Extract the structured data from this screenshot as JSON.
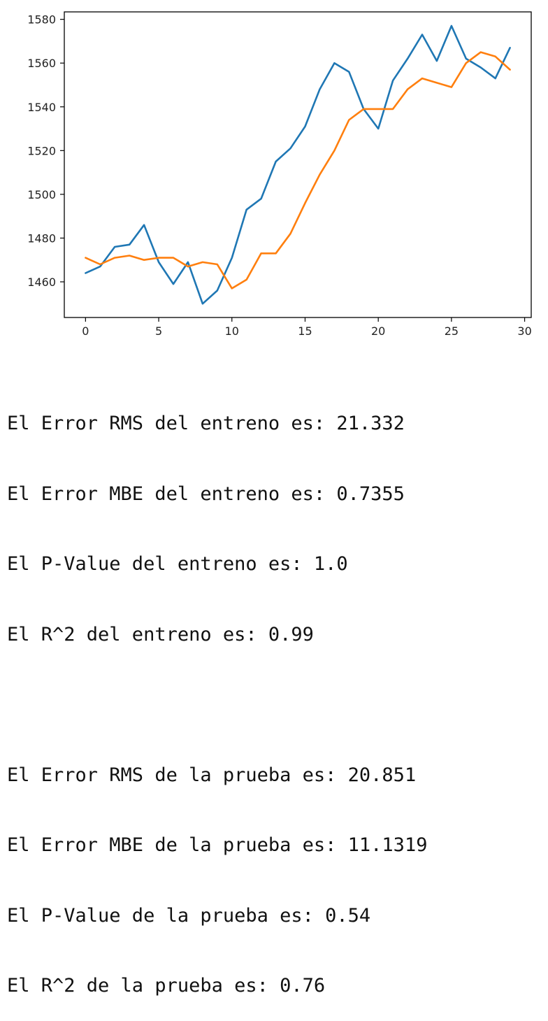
{
  "chart_data": {
    "type": "line",
    "title": "",
    "xlabel": "",
    "ylabel": "",
    "xlim": [
      -1.45,
      30.45
    ],
    "ylim": [
      1443.7,
      1583.4
    ],
    "xticks": [
      0,
      5,
      10,
      15,
      20,
      25,
      30
    ],
    "yticks": [
      1460,
      1480,
      1500,
      1520,
      1540,
      1560,
      1580
    ],
    "grid": false,
    "legend": "none",
    "x": [
      0,
      1,
      2,
      3,
      4,
      5,
      6,
      7,
      8,
      9,
      10,
      11,
      12,
      13,
      14,
      15,
      16,
      17,
      18,
      19,
      20,
      21,
      22,
      23,
      24,
      25,
      26,
      27,
      28,
      29
    ],
    "series": [
      {
        "color": "#1f77b4",
        "values": [
          1464,
          1467,
          1476,
          1477,
          1486,
          1469,
          1459,
          1469,
          1450,
          1456,
          1471,
          1493,
          1498,
          1515,
          1521,
          1531,
          1548,
          1560,
          1556,
          1539,
          1530,
          1552,
          1562,
          1573,
          1561,
          1577,
          1562,
          1558,
          1553,
          1567
        ]
      },
      {
        "color": "#ff7f0e",
        "values": [
          1471,
          1468,
          1471,
          1472,
          1470,
          1471,
          1471,
          1467,
          1469,
          1468,
          1457,
          1461,
          1473,
          1473,
          1482,
          1496,
          1509,
          1520,
          1534,
          1539,
          1539,
          1539,
          1548,
          1553,
          1551,
          1549,
          1560,
          1565,
          1563,
          1557
        ]
      }
    ]
  },
  "output": {
    "lines": [
      "El Error RMS del entreno es: 21.332",
      "El Error MBE del entreno es: 0.7355",
      "El P-Value del entreno es: 1.0",
      "El R^2 del entreno es: 0.99",
      "",
      "El Error RMS de la prueba es: 20.851",
      "El Error MBE de la prueba es: 11.1319",
      "El P-Value de la prueba es: 0.54",
      "El R^2 de la prueba es: 0.76"
    ]
  }
}
